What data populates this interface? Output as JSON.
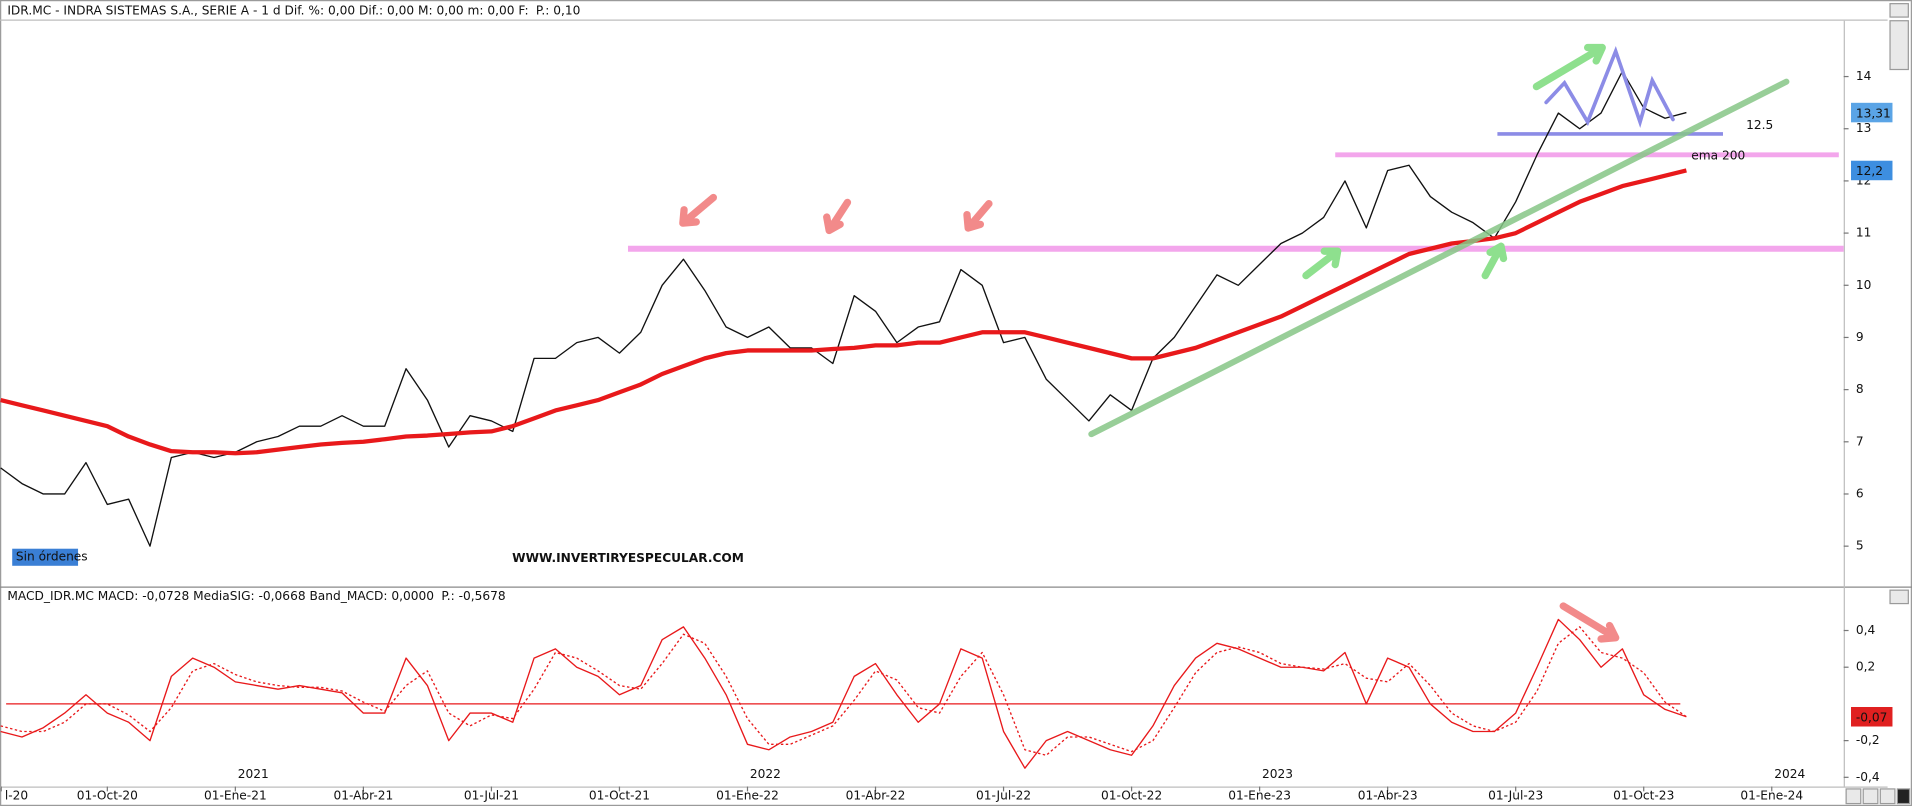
{
  "chart_data": [
    {
      "type": "line",
      "title": "IDR.MC - INDRA SISTEMAS S.A., SERIE A -  1 d  Dif. %: 0,00  Dif.: 0,00  M: 0,00  m: 0,00  F:",
      "title_extra": "P.: 0,10",
      "ylim": [
        4.25,
        15.07
      ],
      "yticks": [
        5,
        6,
        7,
        8,
        9,
        10,
        11,
        12,
        13,
        14
      ],
      "series": [
        {
          "color": "#111111",
          "values": [
            null,
            6.5,
            6.2,
            6.0,
            6.0,
            6.6,
            5.8,
            5.9,
            5.0,
            6.7,
            6.8,
            6.7,
            6.8,
            7.0,
            7.1,
            7.3,
            7.3,
            7.5,
            7.3,
            7.3,
            8.4,
            7.8,
            6.9,
            7.5,
            7.4,
            7.2,
            8.6,
            8.6,
            8.9,
            9.0,
            8.7,
            9.1,
            10.0,
            10.5,
            9.9,
            9.2,
            9.0,
            9.2,
            8.8,
            8.8,
            8.5,
            9.8,
            9.5,
            8.9,
            9.2,
            9.3,
            10.3,
            10.0,
            8.9,
            9.0,
            8.2,
            7.8,
            7.4,
            7.9,
            7.6,
            8.6,
            9.0,
            9.6,
            10.2,
            10.0,
            10.4,
            10.8,
            11.0,
            11.3,
            12.0,
            11.1,
            12.2,
            12.3,
            11.7,
            11.4,
            11.2,
            10.9,
            11.6,
            12.5,
            13.3,
            13.0,
            13.3,
            14.1,
            13.4,
            13.2,
            13.31,
            null,
            null,
            null,
            null,
            null,
            null,
            null
          ]
        },
        {
          "color": "#e8191b",
          "values": [
            null,
            7.8,
            7.7,
            7.6,
            7.5,
            7.4,
            7.3,
            7.1,
            6.95,
            6.82,
            6.8,
            6.8,
            6.78,
            6.8,
            6.85,
            6.9,
            6.95,
            6.98,
            7.0,
            7.05,
            7.1,
            7.12,
            7.15,
            7.18,
            7.2,
            7.3,
            7.45,
            7.6,
            7.7,
            7.8,
            7.95,
            8.1,
            8.3,
            8.45,
            8.6,
            8.7,
            8.75,
            8.75,
            8.75,
            8.75,
            8.78,
            8.8,
            8.85,
            8.85,
            8.9,
            8.9,
            9.0,
            9.1,
            9.1,
            9.1,
            9.0,
            8.9,
            8.8,
            8.7,
            8.6,
            8.6,
            8.7,
            8.8,
            8.95,
            9.1,
            9.25,
            9.4,
            9.6,
            9.8,
            10.0,
            10.2,
            10.4,
            10.6,
            10.7,
            10.8,
            10.85,
            10.9,
            11.0,
            11.2,
            11.4,
            11.6,
            11.75,
            11.9,
            12.0,
            12.1,
            12.2,
            null,
            null,
            null,
            null,
            null,
            null,
            null
          ]
        }
      ],
      "hlines": [
        {
          "value": 10.7,
          "color": "#f3a6ec"
        },
        {
          "value": 12.5,
          "color": "#f3a6ec"
        },
        {
          "value": 12.9,
          "color": "#8c8ce6"
        }
      ],
      "value_tags": [
        {
          "value": 13.31,
          "label": "13,31",
          "color": "#5aa4e6"
        },
        {
          "value": 12.2,
          "label": "12,2",
          "color": "#3d8ee0"
        }
      ],
      "annotations": [
        {
          "text": "12.5"
        },
        {
          "text": "ema 200"
        },
        {
          "text": "Sin órdenes"
        },
        {
          "text": "WWW.INVERTIRYESPECULAR.COM"
        }
      ]
    },
    {
      "type": "line",
      "title": "MACD_IDR.MC  MACD: -0,0728  MediaSIG: -0,0668  Band_MACD: 0,0000",
      "title_extra": "P.: -0,5678",
      "ylim": [
        -0.45,
        0.56
      ],
      "yticks": [
        {
          "value": 0.4,
          "label": "0,4"
        },
        {
          "value": 0.2,
          "label": "0,2"
        },
        {
          "value": -0.2,
          "label": "-0,2"
        },
        {
          "value": -0.4,
          "label": "-0,4"
        }
      ],
      "categories": [
        "l-20",
        null,
        null,
        null,
        null,
        null,
        "01-Oct-20",
        null,
        null,
        null,
        null,
        null,
        "01-Ene-21",
        null,
        null,
        null,
        null,
        null,
        "01-Abr-21",
        null,
        null,
        null,
        null,
        null,
        "01-Jul-21",
        null,
        null,
        null,
        null,
        null,
        "01-Oct-21",
        null,
        null,
        null,
        null,
        null,
        "01-Ene-22",
        null,
        null,
        null,
        null,
        null,
        "01-Abr-22",
        null,
        null,
        null,
        null,
        null,
        "01-Jul-22",
        null,
        null,
        null,
        null,
        null,
        "01-Oct-22",
        null,
        null,
        null,
        null,
        null,
        "01-Ene-23",
        null,
        null,
        null,
        null,
        null,
        "01-Abr-23",
        null,
        null,
        null,
        null,
        null,
        "01-Jul-23",
        null,
        null,
        null,
        null,
        null,
        "01-Oct-23",
        null,
        null,
        null,
        null,
        null,
        "01-Ene-24",
        null,
        null,
        null
      ],
      "years": [
        null,
        null,
        null,
        null,
        null,
        null,
        null,
        null,
        null,
        null,
        null,
        null,
        "2021",
        null,
        null,
        null,
        null,
        null,
        null,
        null,
        null,
        null,
        null,
        null,
        null,
        null,
        null,
        null,
        null,
        null,
        null,
        null,
        null,
        null,
        null,
        null,
        "2022",
        null,
        null,
        null,
        null,
        null,
        null,
        null,
        null,
        null,
        null,
        null,
        null,
        null,
        null,
        null,
        null,
        null,
        null,
        null,
        null,
        null,
        null,
        null,
        "2023",
        null,
        null,
        null,
        null,
        null,
        null,
        null,
        null,
        null,
        null,
        null,
        null,
        null,
        null,
        null,
        null,
        null,
        null,
        null,
        null,
        null,
        null,
        null,
        "2024",
        null,
        null,
        null
      ],
      "series": [
        {
          "color": "#e8191b",
          "dashed": false,
          "values": [
            null,
            -0.15,
            -0.18,
            -0.13,
            -0.05,
            0.05,
            -0.05,
            -0.1,
            -0.2,
            0.15,
            0.25,
            0.2,
            0.12,
            0.1,
            0.08,
            0.1,
            0.08,
            0.06,
            -0.05,
            -0.05,
            0.25,
            0.1,
            -0.2,
            -0.05,
            -0.05,
            -0.1,
            0.25,
            0.3,
            0.2,
            0.15,
            0.05,
            0.1,
            0.35,
            0.42,
            0.25,
            0.05,
            -0.22,
            -0.25,
            -0.18,
            -0.15,
            -0.1,
            0.15,
            0.22,
            0.05,
            -0.1,
            0.0,
            0.3,
            0.25,
            -0.15,
            -0.35,
            -0.2,
            -0.15,
            -0.2,
            -0.25,
            -0.28,
            -0.12,
            0.1,
            0.25,
            0.33,
            0.3,
            0.25,
            0.2,
            0.2,
            0.18,
            0.28,
            0.0,
            0.25,
            0.2,
            0.0,
            -0.1,
            -0.15,
            -0.15,
            -0.05,
            0.2,
            0.46,
            0.35,
            0.2,
            0.3,
            0.05,
            -0.03,
            -0.07,
            null,
            null,
            null,
            null,
            null,
            null,
            null
          ]
        },
        {
          "color": "#e8191b",
          "dashed": true,
          "values": [
            null,
            -0.12,
            -0.15,
            -0.15,
            -0.1,
            0.0,
            0.0,
            -0.06,
            -0.15,
            -0.02,
            0.18,
            0.22,
            0.16,
            0.12,
            0.1,
            0.09,
            0.09,
            0.07,
            0.01,
            -0.04,
            0.1,
            0.18,
            -0.05,
            -0.12,
            -0.06,
            -0.08,
            0.08,
            0.28,
            0.25,
            0.18,
            0.1,
            0.08,
            0.22,
            0.38,
            0.33,
            0.15,
            -0.08,
            -0.22,
            -0.22,
            -0.17,
            -0.12,
            0.02,
            0.18,
            0.13,
            -0.02,
            -0.05,
            0.15,
            0.28,
            0.05,
            -0.25,
            -0.28,
            -0.18,
            -0.18,
            -0.22,
            -0.26,
            -0.2,
            -0.02,
            0.17,
            0.28,
            0.31,
            0.28,
            0.22,
            0.2,
            0.19,
            0.22,
            0.14,
            0.12,
            0.22,
            0.1,
            -0.05,
            -0.12,
            -0.15,
            -0.1,
            0.07,
            0.33,
            0.42,
            0.28,
            0.25,
            0.17,
            0.01,
            -0.07,
            null,
            null,
            null,
            null,
            null,
            null,
            null
          ]
        }
      ],
      "hlines": [
        {
          "value": 0,
          "color": "#e8191b"
        }
      ],
      "value_tags": [
        {
          "value": -0.07,
          "label": "-0,07",
          "color": "#e02020"
        }
      ]
    }
  ]
}
